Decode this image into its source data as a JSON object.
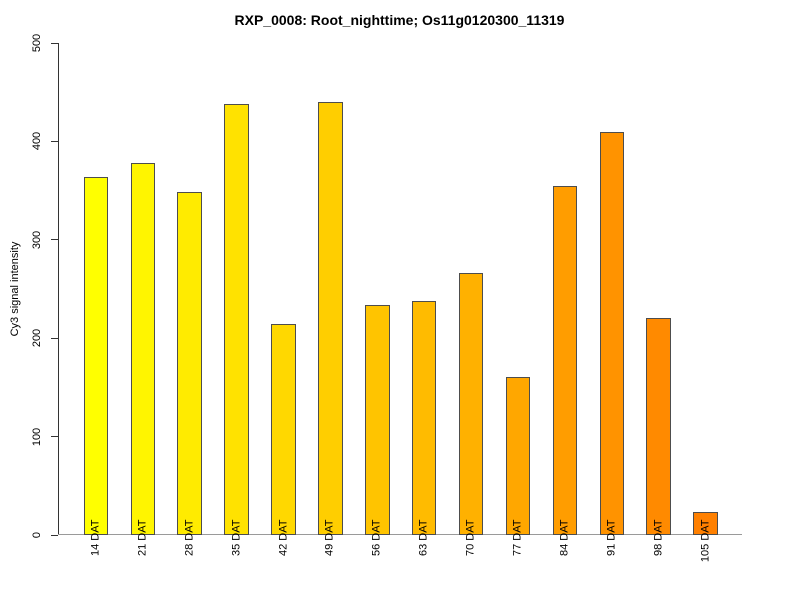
{
  "chart_data": {
    "type": "bar",
    "title": "RXP_0008: Root_nighttime; Os11g0120300_11319",
    "ylabel": "Cy3 signal intensity",
    "xlabel": "",
    "categories": [
      "14 DAT",
      "21 DAT",
      "28 DAT",
      "35 DAT",
      "42 DAT",
      "49 DAT",
      "56 DAT",
      "63 DAT",
      "70 DAT",
      "77 DAT",
      "84 DAT",
      "91 DAT",
      "98 DAT",
      "105 DAT"
    ],
    "values": [
      364,
      378,
      349,
      438,
      214,
      440,
      234,
      238,
      266,
      161,
      355,
      410,
      221,
      23
    ],
    "bar_colors": [
      "#FFFF00",
      "#FFF500",
      "#FFEB00",
      "#FFE200",
      "#FFD800",
      "#FFCE00",
      "#FFC400",
      "#FFBB00",
      "#FFB100",
      "#FFA700",
      "#FF9D00",
      "#FF9300",
      "#FF8A00",
      "#FF8000"
    ],
    "ylim": [
      0,
      500
    ],
    "yticks": [
      0,
      100,
      200,
      300,
      400,
      500
    ],
    "grid": false,
    "legend": null,
    "bar_border_color": "#4d4d4d",
    "axis_color": "#333333",
    "baseline_color": "#9a9a9a",
    "background": "#ffffff"
  }
}
